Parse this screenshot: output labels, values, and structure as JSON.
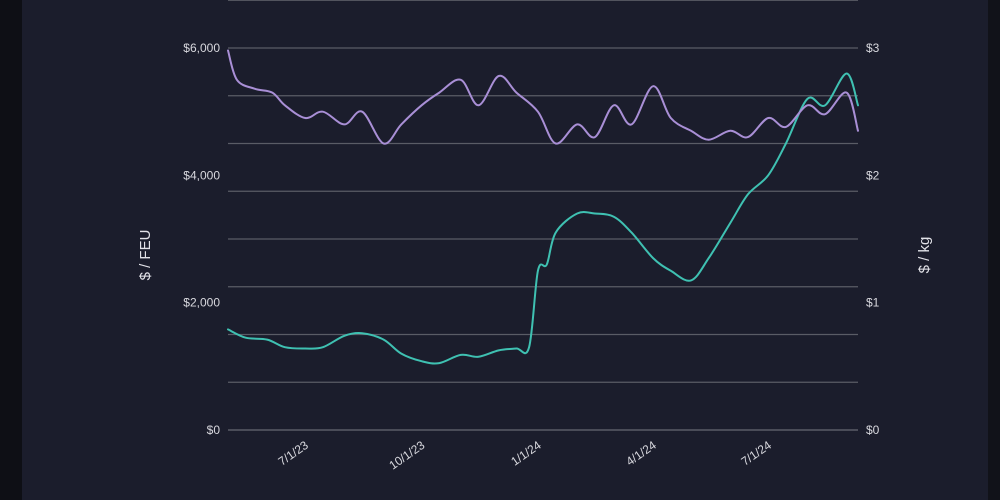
{
  "chart_data": {
    "type": "line",
    "title": "",
    "xlabel": "",
    "ylabel_left": "$ / FEU",
    "ylabel_right": "$ / kg",
    "ylim_left": [
      0,
      6000
    ],
    "ylim_right": [
      0,
      3
    ],
    "grid": true,
    "left_ticks": [
      "$0",
      "$2,000",
      "$4,000",
      "$6,000"
    ],
    "right_ticks": [
      "$0",
      "$1",
      "$2",
      "$3"
    ],
    "x_ticks": [
      "7/1/23",
      "10/1/23",
      "1/1/24",
      "4/1/24",
      "7/1/24"
    ],
    "colors": {
      "series_feu": "#3fc1b2",
      "series_kg": "#a98fd6",
      "grid": "#5a5c66"
    },
    "series": [
      {
        "axis": "left",
        "x": [
          "2023-05-01",
          "2023-05-15",
          "2023-06-01",
          "2023-06-15",
          "2023-07-01",
          "2023-07-15",
          "2023-08-01",
          "2023-08-15",
          "2023-09-01",
          "2023-09-15",
          "2023-10-01",
          "2023-10-15",
          "2023-11-01",
          "2023-11-15",
          "2023-12-01",
          "2023-12-15",
          "2023-12-25",
          "2024-01-01",
          "2024-01-08",
          "2024-01-15",
          "2024-02-01",
          "2024-02-15",
          "2024-03-01",
          "2024-03-15",
          "2024-04-01",
          "2024-04-15",
          "2024-05-01",
          "2024-05-15",
          "2024-06-01",
          "2024-06-15",
          "2024-07-01",
          "2024-07-15",
          "2024-08-01",
          "2024-08-15",
          "2024-09-01",
          "2024-09-10"
        ],
        "values": [
          1580,
          1450,
          1420,
          1300,
          1280,
          1300,
          1480,
          1520,
          1420,
          1200,
          1080,
          1050,
          1180,
          1150,
          1250,
          1280,
          1300,
          2500,
          2600,
          3100,
          3400,
          3400,
          3350,
          3100,
          2700,
          2500,
          2350,
          2700,
          3250,
          3700,
          4000,
          4500,
          5200,
          5100,
          5600,
          5100
        ]
      },
      {
        "axis": "right",
        "x": [
          "2023-05-01",
          "2023-05-08",
          "2023-05-22",
          "2023-06-05",
          "2023-06-15",
          "2023-07-01",
          "2023-07-15",
          "2023-08-01",
          "2023-08-15",
          "2023-09-01",
          "2023-09-15",
          "2023-10-01",
          "2023-10-15",
          "2023-11-01",
          "2023-11-15",
          "2023-12-01",
          "2023-12-15",
          "2024-01-01",
          "2024-01-15",
          "2024-02-01",
          "2024-02-15",
          "2024-03-01",
          "2024-03-15",
          "2024-04-01",
          "2024-04-15",
          "2024-05-01",
          "2024-05-15",
          "2024-06-01",
          "2024-06-15",
          "2024-07-01",
          "2024-07-15",
          "2024-08-01",
          "2024-08-15",
          "2024-09-01",
          "2024-09-10"
        ],
        "values": [
          2.98,
          2.75,
          2.68,
          2.65,
          2.55,
          2.45,
          2.5,
          2.4,
          2.5,
          2.25,
          2.4,
          2.55,
          2.65,
          2.75,
          2.55,
          2.78,
          2.65,
          2.5,
          2.25,
          2.4,
          2.3,
          2.55,
          2.4,
          2.7,
          2.45,
          2.35,
          2.28,
          2.35,
          2.3,
          2.45,
          2.38,
          2.55,
          2.48,
          2.65,
          2.35
        ]
      }
    ]
  }
}
